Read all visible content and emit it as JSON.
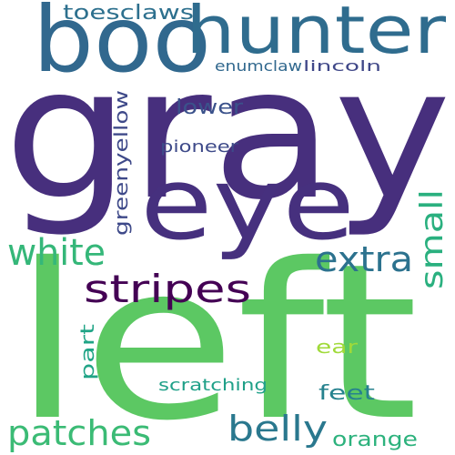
{
  "words": [
    {
      "text": "gray",
      "color": "#472f7d"
    },
    {
      "text": "left",
      "color": "#5cc863"
    },
    {
      "text": "eye",
      "color": "#46307e"
    },
    {
      "text": "boo",
      "color": "#31688e"
    },
    {
      "text": "hunter",
      "color": "#2f6c8e"
    },
    {
      "text": "stripes",
      "color": "#440154"
    },
    {
      "text": "white",
      "color": "#35b779"
    },
    {
      "text": "extra",
      "color": "#2c728e"
    },
    {
      "text": "small",
      "color": "#2ab07f"
    },
    {
      "text": "patches",
      "color": "#3bbb75"
    },
    {
      "text": "belly",
      "color": "#2a788e"
    },
    {
      "text": "toesclaws",
      "color": "#2d708e"
    },
    {
      "text": "greenyellow",
      "color": "#3e4989"
    },
    {
      "text": "lower",
      "color": "#3b528b"
    },
    {
      "text": "pioneer",
      "color": "#3e4a89"
    },
    {
      "text": "enumclaw",
      "color": "#31688e"
    },
    {
      "text": "lincoln",
      "color": "#3f4788"
    },
    {
      "text": "part",
      "color": "#20a486"
    },
    {
      "text": "ear",
      "color": "#a0da39"
    },
    {
      "text": "feet",
      "color": "#26828e"
    },
    {
      "text": "scratching",
      "color": "#1fa088"
    },
    {
      "text": "orange",
      "color": "#2db27d"
    }
  ]
}
